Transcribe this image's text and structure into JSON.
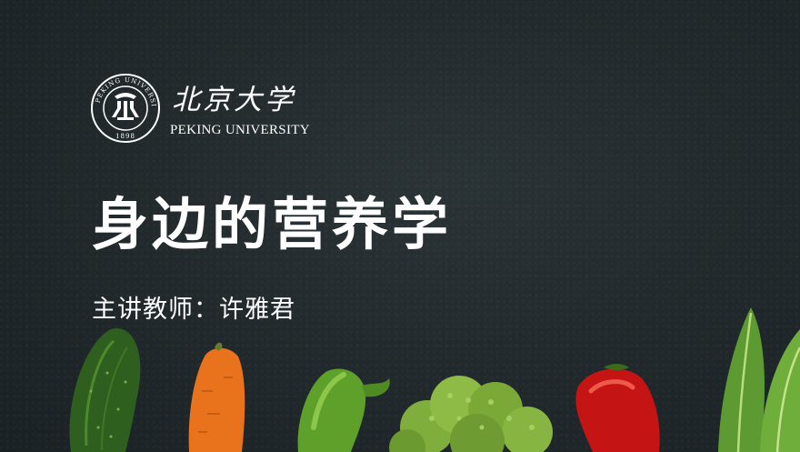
{
  "university": {
    "name_cn": "北京大学",
    "name_en": "PEKING UNIVERSITY",
    "seal_text": "PEKING UNIVERSITY",
    "seal_year": "1898"
  },
  "slide": {
    "title": "身边的营养学",
    "presenter": "主讲教师：许雅君"
  },
  "decor": {
    "items": [
      "cucumber-icon",
      "carrot-icon",
      "green-pepper-icon",
      "broccoli-icon",
      "red-pepper-icon",
      "lettuce-icon"
    ],
    "background_color": "#222a2d",
    "text_color": "#ffffff"
  }
}
